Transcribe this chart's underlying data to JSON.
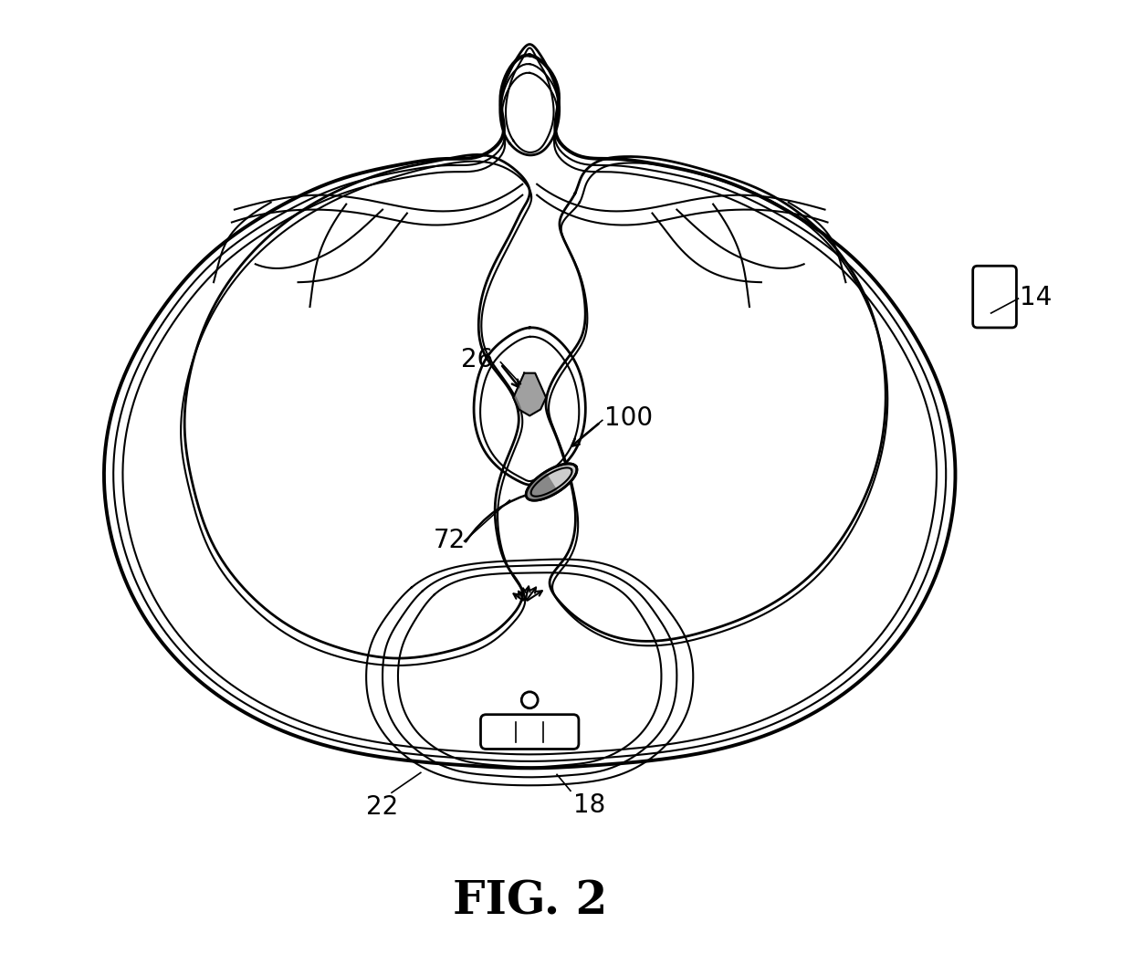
{
  "fig_label": "FIG. 2",
  "bg_color": "#ffffff",
  "line_color": "#000000",
  "fig_label_fontsize": 36,
  "label_fontsize": 20
}
